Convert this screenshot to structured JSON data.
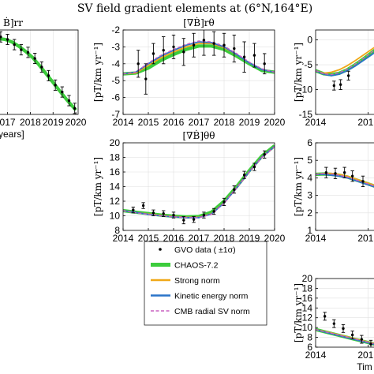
{
  "figure": {
    "title": "SV field gradient elements at (6°N,164°E)"
  },
  "colors": {
    "chaos": "#3ccc3c",
    "strong": "#f0a818",
    "kinetic": "#2a74c8",
    "cmb": "#c860c0",
    "data": "#000000"
  },
  "legend": {
    "items": [
      {
        "key": "data",
        "label": "GVO data ( ±1σ)"
      },
      {
        "key": "chaos",
        "label": "CHAOS-7.2"
      },
      {
        "key": "strong",
        "label": "Strong norm"
      },
      {
        "key": "kinetic",
        "label": "Kinetic energy norm"
      },
      {
        "key": "cmb",
        "label": "CMB radial SV norm"
      }
    ]
  },
  "chart_data": [
    {
      "id": "rr",
      "type": "line",
      "subtitle": "Ḃ]rr",
      "xlabel": "years]",
      "ylabel": "",
      "xticks": [
        "017",
        "2018",
        "2019",
        "2020"
      ],
      "grid": true,
      "x": [
        2016.6,
        2016.9,
        2017.2,
        2017.5,
        2017.8,
        2018.1,
        2018.4,
        2018.7,
        2019.0,
        2019.3,
        2019.6,
        2019.9,
        2020.0
      ],
      "series": [
        {
          "name": "CHAOS-7.2",
          "key": "chaos",
          "values": [
            -2.9,
            -2.95,
            -3.1,
            -3.35,
            -3.65,
            -4.0,
            -4.45,
            -4.95,
            -5.45,
            -5.95,
            -6.45,
            -6.9,
            -7.05
          ]
        }
      ],
      "points": [
        {
          "x": 2016.7,
          "y": -2.8,
          "err": 0.3
        },
        {
          "x": 2017.0,
          "y": -2.95,
          "err": 0.3
        },
        {
          "x": 2017.3,
          "y": -3.25,
          "err": 0.3
        },
        {
          "x": 2017.6,
          "y": -3.55,
          "err": 0.3
        },
        {
          "x": 2017.9,
          "y": -3.7,
          "err": 0.3
        },
        {
          "x": 2018.2,
          "y": -4.05,
          "err": 0.3
        },
        {
          "x": 2018.5,
          "y": -4.55,
          "err": 0.3
        },
        {
          "x": 2018.8,
          "y": -5.05,
          "err": 0.3
        },
        {
          "x": 2019.1,
          "y": -5.6,
          "err": 0.3
        },
        {
          "x": 2019.4,
          "y": -6.0,
          "err": 0.3
        },
        {
          "x": 2019.7,
          "y": -6.5,
          "err": 0.3
        },
        {
          "x": 2019.95,
          "y": -6.95,
          "err": 0.3
        }
      ],
      "xlim": [
        2016.6,
        2020.1
      ],
      "ylim": [
        -7.3,
        -2.4
      ]
    },
    {
      "id": "rtheta",
      "type": "line",
      "subtitle": "[∇Ḃ]rθ",
      "xlabel": "",
      "ylabel": "[pT/km yr⁻¹]",
      "xticks": [
        "2014",
        "2015",
        "2016",
        "2017",
        "2018",
        "2019",
        "2020"
      ],
      "yticks": [
        "-2",
        "-3",
        "-4",
        "-5",
        "-6",
        "-7"
      ],
      "grid": true,
      "x": [
        2014.0,
        2014.5,
        2015.0,
        2015.5,
        2016.0,
        2016.5,
        2017.0,
        2017.5,
        2018.0,
        2018.5,
        2019.0,
        2019.5,
        2020.0
      ],
      "series": [
        {
          "name": "CHAOS-7.2",
          "key": "chaos",
          "values": [
            -4.6,
            -4.55,
            -4.25,
            -3.8,
            -3.45,
            -3.15,
            -2.95,
            -2.95,
            -3.15,
            -3.55,
            -4.0,
            -4.4,
            -4.5
          ]
        },
        {
          "name": "Strong norm",
          "key": "strong",
          "values": [
            -4.6,
            -4.55,
            -4.1,
            -3.65,
            -3.3,
            -3.0,
            -2.8,
            -2.8,
            -3.05,
            -3.45,
            -3.95,
            -4.35,
            -4.5
          ]
        },
        {
          "name": "Kinetic energy norm",
          "key": "kinetic",
          "values": [
            -4.6,
            -4.5,
            -4.0,
            -3.55,
            -3.2,
            -2.9,
            -2.7,
            -2.75,
            -3.0,
            -3.45,
            -3.95,
            -4.35,
            -4.5
          ]
        },
        {
          "name": "CMB radial SV norm",
          "key": "cmb",
          "values": [
            -4.6,
            -4.5,
            -3.95,
            -3.5,
            -3.15,
            -2.85,
            -2.65,
            -2.7,
            -2.95,
            -3.4,
            -3.9,
            -4.3,
            -4.5
          ]
        }
      ],
      "points": [
        {
          "x": 2014.6,
          "y": -4.0,
          "err": 0.8
        },
        {
          "x": 2014.9,
          "y": -4.9,
          "err": 0.9
        },
        {
          "x": 2015.2,
          "y": -3.4,
          "err": 0.6
        },
        {
          "x": 2015.6,
          "y": -3.2,
          "err": 0.8
        },
        {
          "x": 2016.0,
          "y": -3.0,
          "err": 0.7
        },
        {
          "x": 2016.4,
          "y": -3.3,
          "err": 0.8
        },
        {
          "x": 2016.8,
          "y": -2.9,
          "err": 0.7
        },
        {
          "x": 2017.2,
          "y": -2.6,
          "err": 0.9
        },
        {
          "x": 2017.6,
          "y": -2.8,
          "err": 0.7
        },
        {
          "x": 2018.0,
          "y": -2.9,
          "err": 0.7
        },
        {
          "x": 2018.4,
          "y": -3.1,
          "err": 0.8
        },
        {
          "x": 2018.8,
          "y": -3.6,
          "err": 0.9
        },
        {
          "x": 2019.2,
          "y": -3.5,
          "err": 0.7
        },
        {
          "x": 2019.6,
          "y": -4.0,
          "err": 0.6
        }
      ],
      "xlim": [
        2014,
        2020
      ],
      "ylim": [
        -7,
        -2
      ]
    },
    {
      "id": "thetatheta",
      "type": "line",
      "subtitle": "[∇Ḃ]θθ",
      "xlabel": "Time [years]",
      "ylabel": "[pT/km yr⁻¹]",
      "xticks": [
        "2014",
        "2015",
        "2016",
        "2017",
        "2018",
        "2019",
        "2020"
      ],
      "yticks": [
        "20",
        "18",
        "16",
        "14",
        "12",
        "10",
        "8"
      ],
      "grid": true,
      "x": [
        2014.0,
        2014.5,
        2015.0,
        2015.5,
        2016.0,
        2016.5,
        2017.0,
        2017.5,
        2018.0,
        2018.5,
        2019.0,
        2019.5,
        2020.0
      ],
      "series": [
        {
          "name": "CHAOS-7.2",
          "key": "chaos",
          "values": [
            10.7,
            10.5,
            10.3,
            10.1,
            9.95,
            9.85,
            9.9,
            10.5,
            12.0,
            14.0,
            16.2,
            18.2,
            19.6
          ]
        },
        {
          "name": "Strong norm",
          "key": "strong",
          "values": [
            10.7,
            10.45,
            10.25,
            10.05,
            9.9,
            9.8,
            9.8,
            10.3,
            11.8,
            13.9,
            16.1,
            18.1,
            19.5
          ]
        },
        {
          "name": "Kinetic energy norm",
          "key": "kinetic",
          "values": [
            10.7,
            10.45,
            10.2,
            10.0,
            9.85,
            9.75,
            9.75,
            10.25,
            11.75,
            13.85,
            16.05,
            18.05,
            19.5
          ]
        },
        {
          "name": "CMB radial SV norm",
          "key": "cmb",
          "values": [
            10.7,
            10.4,
            10.2,
            10.0,
            9.85,
            9.75,
            9.75,
            10.2,
            11.7,
            13.8,
            16.0,
            18.0,
            19.45
          ]
        }
      ],
      "points": [
        {
          "x": 2014.4,
          "y": 10.8,
          "err": 0.4
        },
        {
          "x": 2014.8,
          "y": 11.4,
          "err": 0.4
        },
        {
          "x": 2015.2,
          "y": 10.4,
          "err": 0.4
        },
        {
          "x": 2015.6,
          "y": 10.3,
          "err": 0.4
        },
        {
          "x": 2016.0,
          "y": 10.1,
          "err": 0.4
        },
        {
          "x": 2016.4,
          "y": 9.4,
          "err": 0.5
        },
        {
          "x": 2016.8,
          "y": 9.5,
          "err": 0.4
        },
        {
          "x": 2017.2,
          "y": 10.1,
          "err": 0.4
        },
        {
          "x": 2017.6,
          "y": 10.6,
          "err": 0.4
        },
        {
          "x": 2018.0,
          "y": 11.9,
          "err": 0.5
        },
        {
          "x": 2018.4,
          "y": 13.6,
          "err": 0.5
        },
        {
          "x": 2018.8,
          "y": 15.6,
          "err": 0.5
        },
        {
          "x": 2019.2,
          "y": 16.7,
          "err": 0.5
        },
        {
          "x": 2019.6,
          "y": 18.4,
          "err": 0.5
        }
      ],
      "xlim": [
        2014,
        2020
      ],
      "ylim": [
        8,
        20
      ]
    },
    {
      "id": "right-top",
      "type": "line",
      "subtitle": "",
      "xlabel": "",
      "ylabel": "[pT/km yr⁻¹]",
      "xticks": [
        "2014",
        "2016"
      ],
      "yticks": [
        "0",
        "-5",
        "-10",
        "-15"
      ],
      "grid": true,
      "x": [
        2014.0,
        2014.3,
        2014.6,
        2014.9,
        2015.2,
        2015.5,
        2015.8,
        2016.1,
        2016.4
      ],
      "series": [
        {
          "name": "CHAOS-7.2",
          "key": "chaos",
          "values": [
            -6.2,
            -6.8,
            -7.0,
            -6.7,
            -6.0,
            -5.0,
            -3.9,
            -2.7,
            -1.5
          ]
        },
        {
          "name": "Strong norm",
          "key": "strong",
          "values": [
            -6.2,
            -6.7,
            -6.5,
            -6.0,
            -5.2,
            -4.2,
            -3.1,
            -2.0,
            -0.9
          ]
        },
        {
          "name": "Kinetic energy norm",
          "key": "kinetic",
          "values": [
            -6.2,
            -6.9,
            -7.2,
            -6.9,
            -6.2,
            -5.3,
            -4.2,
            -3.1,
            -2.0
          ]
        },
        {
          "name": "CMB radial SV norm",
          "key": "cmb",
          "values": [
            -6.2,
            -6.8,
            -7.0,
            -6.6,
            -5.9,
            -4.9,
            -3.8,
            -2.6,
            -1.4
          ]
        }
      ],
      "points": [
        {
          "x": 2014.7,
          "y": -9.2,
          "err": 0.9
        },
        {
          "x": 2014.95,
          "y": -9.0,
          "err": 1.0
        },
        {
          "x": 2015.25,
          "y": -7.2,
          "err": 0.9
        }
      ],
      "xlim": [
        2014,
        2016.4
      ],
      "ylim": [
        -15,
        2
      ]
    },
    {
      "id": "right-middle",
      "type": "line",
      "subtitle": "",
      "xlabel": "",
      "ylabel": "[pT/km yr⁻¹]",
      "xticks": [
        "2014",
        "2016"
      ],
      "yticks": [
        "6",
        "5",
        "4",
        "3",
        "2",
        "1"
      ],
      "grid": true,
      "x": [
        2014.0,
        2014.3,
        2014.6,
        2014.9,
        2015.2,
        2015.5,
        2015.8,
        2016.1,
        2016.4
      ],
      "series": [
        {
          "name": "CHAOS-7.2",
          "key": "chaos",
          "values": [
            4.2,
            4.22,
            4.2,
            4.15,
            4.05,
            3.9,
            3.75,
            3.6,
            3.45
          ]
        },
        {
          "name": "Strong norm",
          "key": "strong",
          "values": [
            4.2,
            4.25,
            4.25,
            4.2,
            4.1,
            3.95,
            3.8,
            3.65,
            3.5
          ]
        },
        {
          "name": "Kinetic energy norm",
          "key": "kinetic",
          "values": [
            4.2,
            4.2,
            4.15,
            4.1,
            4.0,
            3.85,
            3.7,
            3.55,
            3.4
          ]
        },
        {
          "name": "CMB radial SV norm",
          "key": "cmb",
          "values": [
            4.2,
            4.25,
            4.22,
            4.15,
            4.05,
            3.9,
            3.75,
            3.6,
            3.45
          ]
        }
      ],
      "points": [
        {
          "x": 2014.4,
          "y": 4.3,
          "err": 0.3
        },
        {
          "x": 2014.75,
          "y": 4.25,
          "err": 0.3
        },
        {
          "x": 2015.1,
          "y": 4.3,
          "err": 0.3
        },
        {
          "x": 2015.4,
          "y": 4.1,
          "err": 0.3
        },
        {
          "x": 2015.8,
          "y": 3.8,
          "err": 0.3
        }
      ],
      "xlim": [
        2014,
        2016.4
      ],
      "ylim": [
        1,
        6
      ]
    },
    {
      "id": "right-bottom",
      "type": "line",
      "subtitle": "",
      "xlabel": "Tim",
      "ylabel": "[pT/km yr⁻¹]",
      "xticks": [
        "2014",
        "2016"
      ],
      "yticks": [
        "20",
        "18",
        "16",
        "14",
        "12",
        "10",
        "8",
        "6"
      ],
      "grid": true,
      "x": [
        2014.0,
        2014.3,
        2014.6,
        2014.9,
        2015.2,
        2015.5,
        2015.8,
        2016.1,
        2016.4
      ],
      "series": [
        {
          "name": "CHAOS-7.2",
          "key": "chaos",
          "values": [
            9.6,
            9.2,
            8.8,
            8.4,
            8.0,
            7.6,
            7.2,
            6.8,
            6.4
          ]
        },
        {
          "name": "Strong norm",
          "key": "strong",
          "values": [
            9.6,
            9.25,
            8.9,
            8.5,
            8.1,
            7.7,
            7.3,
            6.9,
            6.5
          ]
        },
        {
          "name": "Kinetic energy norm",
          "key": "kinetic",
          "values": [
            9.6,
            9.15,
            8.75,
            8.35,
            7.95,
            7.55,
            7.15,
            6.75,
            6.35
          ]
        },
        {
          "name": "CMB radial SV norm",
          "key": "cmb",
          "values": [
            9.6,
            9.2,
            8.85,
            8.45,
            8.05,
            7.65,
            7.25,
            6.85,
            6.45
          ]
        }
      ],
      "points": [
        {
          "x": 2014.35,
          "y": 12.3,
          "err": 0.8
        },
        {
          "x": 2014.7,
          "y": 10.8,
          "err": 0.8
        },
        {
          "x": 2015.05,
          "y": 9.8,
          "err": 0.8
        },
        {
          "x": 2015.4,
          "y": 8.5,
          "err": 0.8
        },
        {
          "x": 2015.75,
          "y": 7.6,
          "err": 0.8
        },
        {
          "x": 2016.1,
          "y": 6.6,
          "err": 0.8
        }
      ],
      "xlim": [
        2014,
        2016.4
      ],
      "ylim": [
        6,
        20
      ]
    }
  ]
}
